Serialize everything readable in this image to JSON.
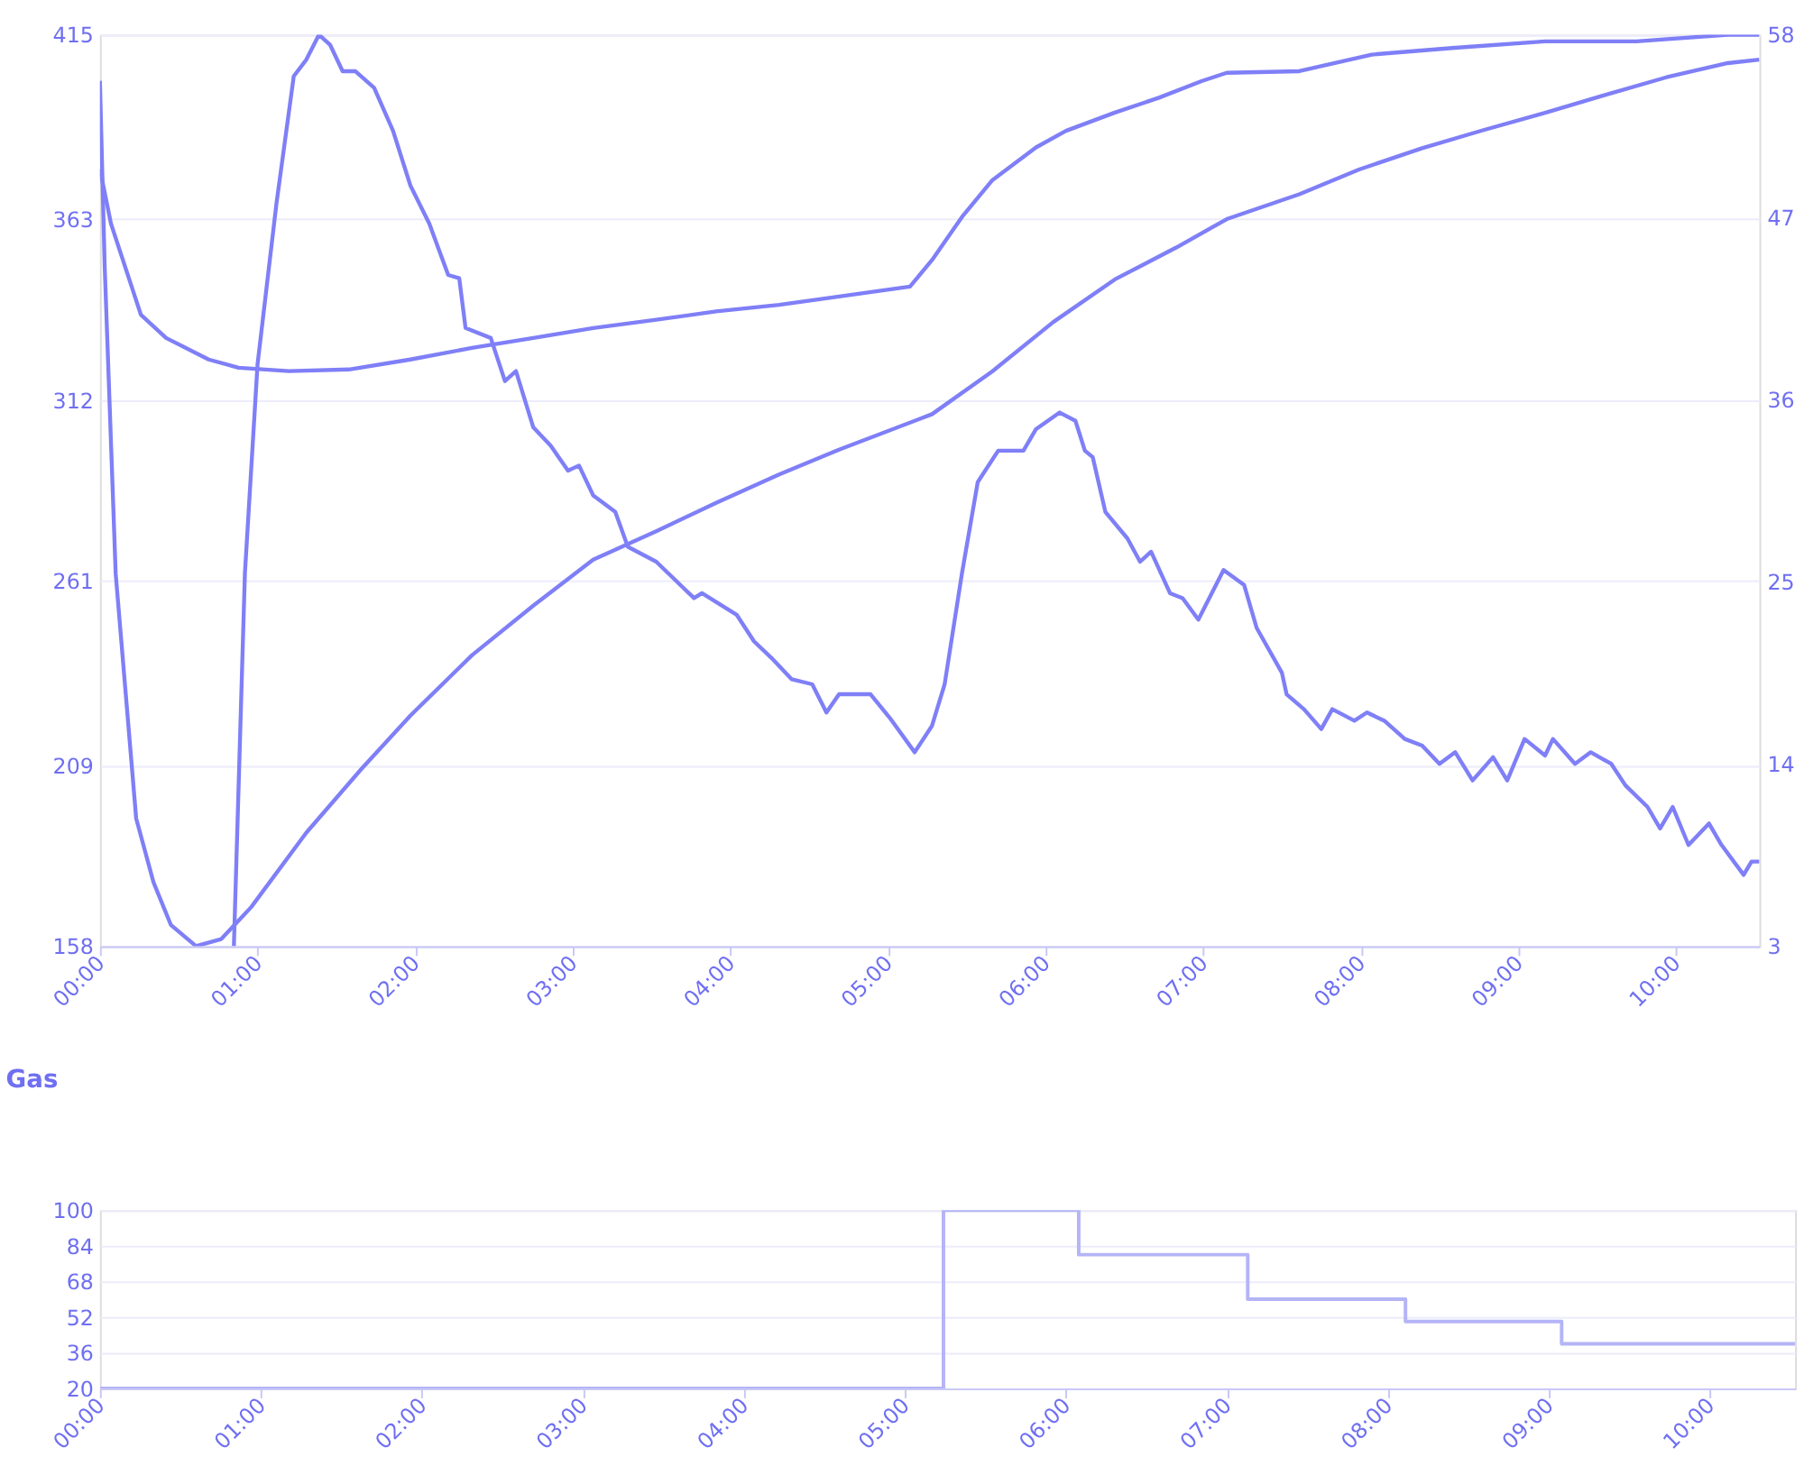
{
  "chart_data": [
    {
      "type": "line",
      "xlim": [
        0,
        10.53
      ],
      "xticks": [
        {
          "value": 0,
          "label": "00:00"
        },
        {
          "value": 1,
          "label": "01:00"
        },
        {
          "value": 2,
          "label": "02:00"
        },
        {
          "value": 3,
          "label": "03:00"
        },
        {
          "value": 4,
          "label": "04:00"
        },
        {
          "value": 5,
          "label": "05:00"
        },
        {
          "value": 6,
          "label": "06:00"
        },
        {
          "value": 7,
          "label": "07:00"
        },
        {
          "value": 8,
          "label": "08:00"
        },
        {
          "value": 9,
          "label": "09:00"
        },
        {
          "value": 10,
          "label": "10:00"
        }
      ],
      "ylim": [
        158,
        415
      ],
      "yticks": [
        158,
        209,
        261,
        312,
        363,
        415
      ],
      "y2lim": [
        3,
        58
      ],
      "y2ticks": [
        3,
        14,
        25,
        36,
        47,
        58
      ],
      "grid": "y",
      "series": [
        {
          "color": "#7f7ff7",
          "x": [
            0,
            0.03,
            0.1,
            0.23,
            0.34,
            0.45,
            0.61,
            0.77,
            0.96,
            1.31,
            1.66,
            1.97,
            2.36,
            2.75,
            3.13,
            3.53,
            3.91,
            4.31,
            4.69,
            5.28,
            5.66,
            6.05,
            6.44,
            6.83,
            7.15,
            7.61,
            7.99,
            8.39,
            8.77,
            9.17,
            9.55,
            9.94,
            10.33,
            10.53
          ],
          "values": [
            402,
            350,
            263,
            194,
            176,
            164,
            158,
            160,
            169,
            190,
            208,
            223,
            240,
            254,
            267,
            275,
            283,
            291,
            298,
            308,
            320,
            334,
            346,
            355,
            363,
            370,
            377,
            383,
            388,
            393,
            398,
            403,
            407,
            408
          ]
        },
        {
          "color": "#7f7ff7",
          "axis": "y2",
          "x": [
            0,
            0.07,
            0.26,
            0.42,
            0.69,
            0.88,
            1.2,
            1.58,
            1.97,
            2.36,
            2.75,
            3.13,
            3.53,
            3.91,
            4.31,
            4.69,
            5.14,
            5.28,
            5.47,
            5.66,
            5.94,
            6.13,
            6.44,
            6.72,
            6.99,
            7.15,
            7.61,
            8.07,
            8.58,
            9.17,
            9.75,
            10.33,
            10.53
          ],
          "values": [
            49.9,
            46.6,
            41.1,
            39.7,
            38.4,
            37.9,
            37.7,
            37.8,
            38.4,
            39.1,
            39.7,
            40.3,
            40.8,
            41.3,
            41.7,
            42.2,
            42.8,
            44.4,
            47.0,
            49.2,
            51.2,
            52.2,
            53.3,
            54.2,
            55.2,
            55.7,
            55.8,
            56.8,
            57.2,
            57.6,
            57.6,
            58,
            58
          ]
        },
        {
          "color": "#7f7ff7",
          "axis": "y2",
          "x": [
            0.85,
            0.92,
            1.0,
            1.12,
            1.23,
            1.31,
            1.39,
            1.46,
            1.54,
            1.62,
            1.74,
            1.86,
            1.97,
            2.09,
            2.21,
            2.28,
            2.32,
            2.48,
            2.57,
            2.64,
            2.75,
            2.86,
            2.97,
            3.04,
            3.13,
            3.27,
            3.35,
            3.53,
            3.77,
            3.82,
            4.04,
            4.15,
            4.26,
            4.39,
            4.52,
            4.61,
            4.69,
            4.89,
            5.01,
            5.17,
            5.28,
            5.36,
            5.47,
            5.57,
            5.7,
            5.86,
            5.94,
            6.09,
            6.19,
            6.25,
            6.3,
            6.38,
            6.52,
            6.6,
            6.67,
            6.79,
            6.87,
            6.97,
            7.13,
            7.26,
            7.34,
            7.5,
            7.53,
            7.64,
            7.75,
            7.82,
            7.96,
            8.04,
            8.15,
            8.28,
            8.39,
            8.5,
            8.6,
            8.71,
            8.84,
            8.93,
            9.04,
            9.17,
            9.22,
            9.36,
            9.46,
            9.59,
            9.68,
            9.82,
            9.9,
            9.98,
            10.08,
            10.21,
            10.29,
            10.43,
            10.48,
            10.53
          ],
          "values": [
            3.0,
            25.5,
            38.1,
            47.8,
            55.5,
            56.5,
            58,
            57.4,
            55.8,
            55.8,
            54.8,
            52.2,
            48.9,
            46.6,
            43.5,
            43.3,
            40.3,
            39.7,
            37.1,
            37.7,
            34.3,
            33.2,
            31.7,
            32.0,
            30.2,
            29.2,
            27.1,
            26.2,
            24.0,
            24.3,
            23.0,
            21.4,
            20.4,
            19.1,
            18.8,
            17.1,
            18.2,
            18.2,
            16.8,
            14.7,
            16.3,
            18.8,
            25.5,
            31.0,
            32.9,
            32.9,
            34.2,
            35.2,
            34.7,
            32.9,
            32.5,
            29.2,
            27.6,
            26.2,
            26.8,
            24.3,
            24.0,
            22.7,
            25.7,
            24.8,
            22.2,
            19.5,
            18.2,
            17.3,
            16.1,
            17.3,
            16.6,
            17.1,
            16.6,
            15.5,
            15.1,
            14.0,
            14.7,
            13.0,
            14.4,
            13.0,
            15.5,
            14.5,
            15.5,
            14.0,
            14.7,
            14.0,
            12.7,
            11.4,
            10.1,
            11.4,
            9.1,
            10.4,
            9.1,
            7.3,
            8.1,
            8.1
          ]
        }
      ]
    },
    {
      "type": "step",
      "title": "Gas",
      "xlim": [
        0,
        10.53
      ],
      "xticks": [
        {
          "value": 0,
          "label": "00:00"
        },
        {
          "value": 1,
          "label": "01:00"
        },
        {
          "value": 2,
          "label": "02:00"
        },
        {
          "value": 3,
          "label": "03:00"
        },
        {
          "value": 4,
          "label": "04:00"
        },
        {
          "value": 5,
          "label": "05:00"
        },
        {
          "value": 6,
          "label": "06:00"
        },
        {
          "value": 7,
          "label": "07:00"
        },
        {
          "value": 8,
          "label": "08:00"
        },
        {
          "value": 9,
          "label": "09:00"
        },
        {
          "value": 10,
          "label": "10:00"
        }
      ],
      "ylim": [
        20,
        100
      ],
      "yticks": [
        20,
        36,
        52,
        68,
        84,
        100
      ],
      "grid": "y",
      "x": [
        0,
        5.24,
        6.08,
        7.13,
        8.11,
        9.08,
        10.53
      ],
      "values": [
        20,
        100,
        80,
        60,
        50,
        40,
        40
      ],
      "color": "#b4b4f7"
    }
  ]
}
